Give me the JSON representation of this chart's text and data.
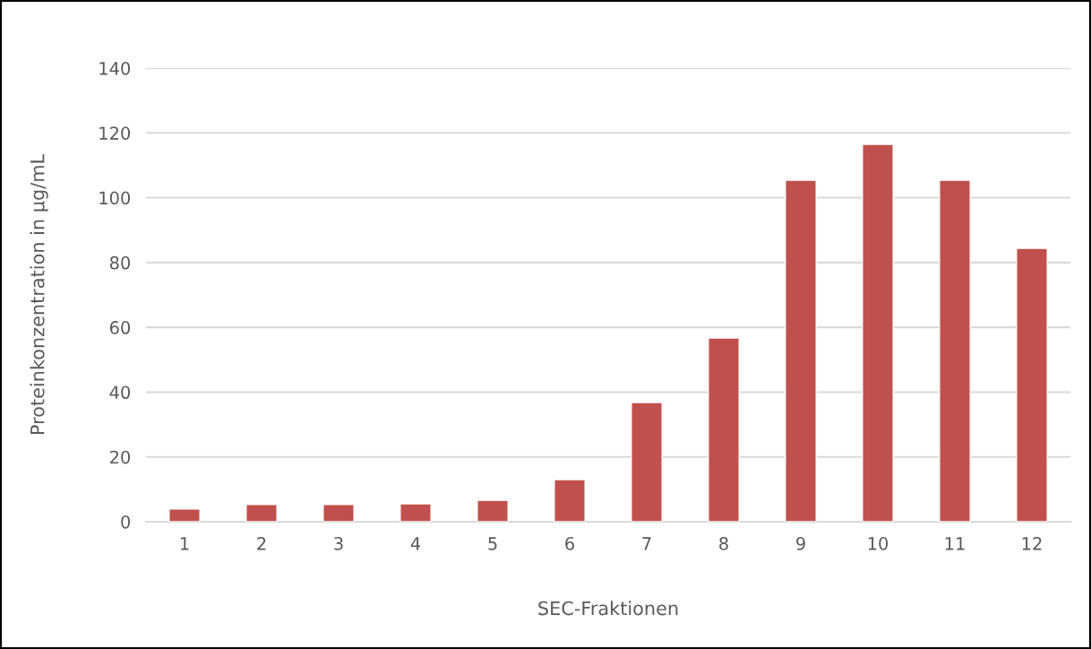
{
  "chart_data": {
    "type": "bar",
    "xlabel": "SEC-Fraktionen",
    "ylabel": "Proteinkonzentration in µg/mL",
    "categories": [
      "1",
      "2",
      "3",
      "4",
      "5",
      "6",
      "7",
      "8",
      "9",
      "10",
      "11",
      "12"
    ],
    "values": [
      3.9,
      5.3,
      5.3,
      5.5,
      6.6,
      13,
      36.8,
      56.7,
      105.4,
      116.5,
      105.4,
      84.4
    ],
    "color": "#c0504d",
    "ylim": [
      0,
      140
    ],
    "yticks": [
      0,
      20,
      40,
      60,
      80,
      100,
      120,
      140
    ],
    "grid": "y",
    "legend": false
  }
}
